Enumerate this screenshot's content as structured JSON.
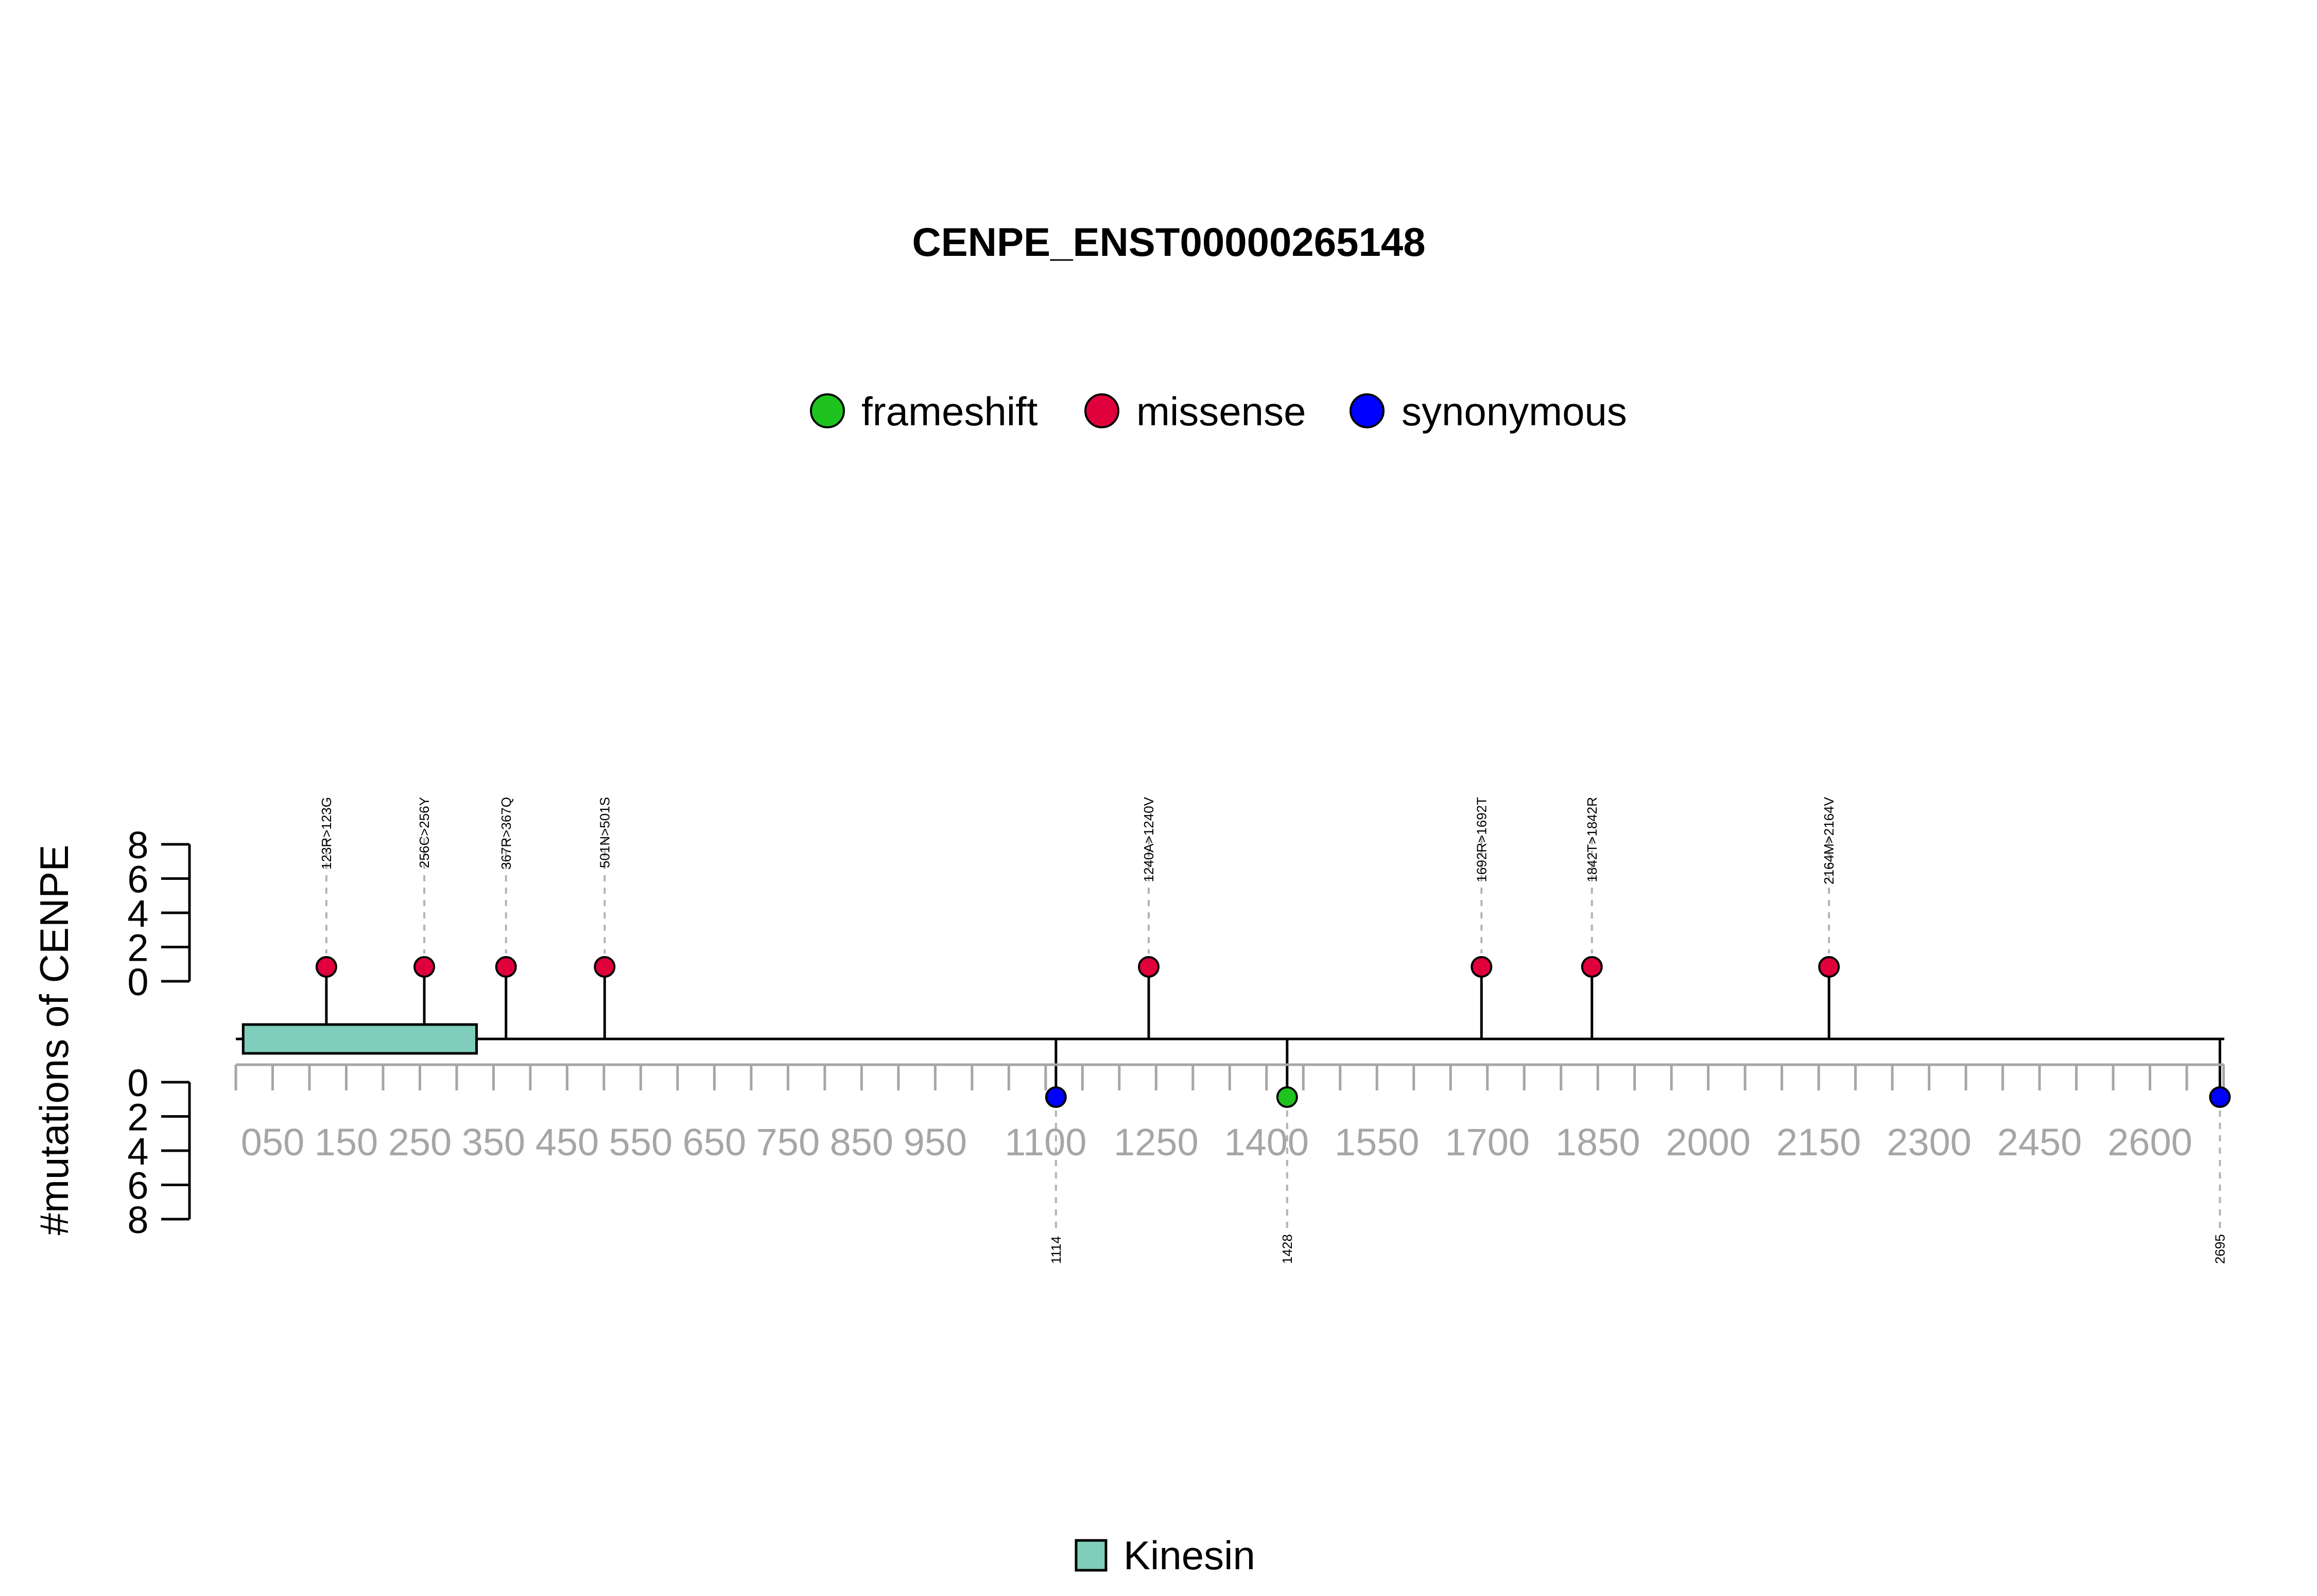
{
  "chart_data": {
    "type": "lollipop",
    "title": "CENPE_ENST00000265148",
    "ylabel": "#mutations of CENPE",
    "protein_length": 2701,
    "xlim": [
      0,
      2701
    ],
    "x_ticks": [
      0,
      50,
      100,
      150,
      200,
      250,
      300,
      350,
      400,
      450,
      500,
      550,
      600,
      650,
      700,
      750,
      800,
      850,
      900,
      950,
      1000,
      1050,
      1100,
      1150,
      1200,
      1250,
      1300,
      1350,
      1400,
      1450,
      1500,
      1550,
      1600,
      1650,
      1700,
      1750,
      1800,
      1850,
      1900,
      1950,
      2000,
      2050,
      2100,
      2150,
      2200,
      2250,
      2300,
      2350,
      2400,
      2450,
      2500,
      2550,
      2600,
      2650,
      2700
    ],
    "x_tick_labels": [
      {
        "value": 50,
        "text": "050"
      },
      {
        "value": 150,
        "text": "150"
      },
      {
        "value": 250,
        "text": "250"
      },
      {
        "value": 350,
        "text": "350"
      },
      {
        "value": 450,
        "text": "450"
      },
      {
        "value": 550,
        "text": "550"
      },
      {
        "value": 650,
        "text": "650"
      },
      {
        "value": 750,
        "text": "750"
      },
      {
        "value": 850,
        "text": "850"
      },
      {
        "value": 950,
        "text": "950"
      },
      {
        "value": 1100,
        "text": "1100"
      },
      {
        "value": 1250,
        "text": "1250"
      },
      {
        "value": 1400,
        "text": "1400"
      },
      {
        "value": 1550,
        "text": "1550"
      },
      {
        "value": 1700,
        "text": "1700"
      },
      {
        "value": 1850,
        "text": "1850"
      },
      {
        "value": 2000,
        "text": "2000"
      },
      {
        "value": 2150,
        "text": "2150"
      },
      {
        "value": 2300,
        "text": "2300"
      },
      {
        "value": 2450,
        "text": "2450"
      },
      {
        "value": 2600,
        "text": "2600"
      }
    ],
    "y_upper": {
      "ylim": [
        0,
        8
      ],
      "tick_labels": [
        "0",
        "2",
        "4",
        "6",
        "8"
      ]
    },
    "y_lower": {
      "ylim": [
        0,
        8
      ],
      "tick_labels": [
        "0",
        "2",
        "4",
        "6",
        "8"
      ]
    },
    "legend": {
      "placement": "top-center",
      "entries": [
        {
          "label": "frameshift",
          "color": "#1ec31e"
        },
        {
          "label": "missense",
          "color": "#e0003c"
        },
        {
          "label": "synonymous",
          "color": "#0000ff"
        }
      ]
    },
    "mutations_above": [
      {
        "position": 123,
        "count": 1,
        "label": "123R>123G",
        "type": "missense"
      },
      {
        "position": 256,
        "count": 1,
        "label": "256C>256Y",
        "type": "missense"
      },
      {
        "position": 367,
        "count": 1,
        "label": "367R>367Q",
        "type": "missense"
      },
      {
        "position": 501,
        "count": 1,
        "label": "501N>501S",
        "type": "missense"
      },
      {
        "position": 1240,
        "count": 1,
        "label": "1240A>1240V",
        "type": "missense"
      },
      {
        "position": 1692,
        "count": 1,
        "label": "1692R>1692T",
        "type": "missense"
      },
      {
        "position": 1842,
        "count": 1,
        "label": "1842T>1842R",
        "type": "missense"
      },
      {
        "position": 2164,
        "count": 1,
        "label": "2164M>2164V",
        "type": "missense"
      }
    ],
    "mutations_below": [
      {
        "position": 1114,
        "count": 1,
        "label": "1114",
        "type": "synonymous"
      },
      {
        "position": 1428,
        "count": 1,
        "label": "1428",
        "type": "frameshift"
      },
      {
        "position": 2695,
        "count": 1,
        "label": "2695",
        "type": "synonymous"
      }
    ],
    "domains": [
      {
        "name": "Kinesin",
        "start": 10,
        "end": 327,
        "color": "#7fcdbb"
      }
    ],
    "domain_legend": [
      {
        "label": "Kinesin",
        "color": "#7fcdbb"
      }
    ],
    "grid": false
  }
}
